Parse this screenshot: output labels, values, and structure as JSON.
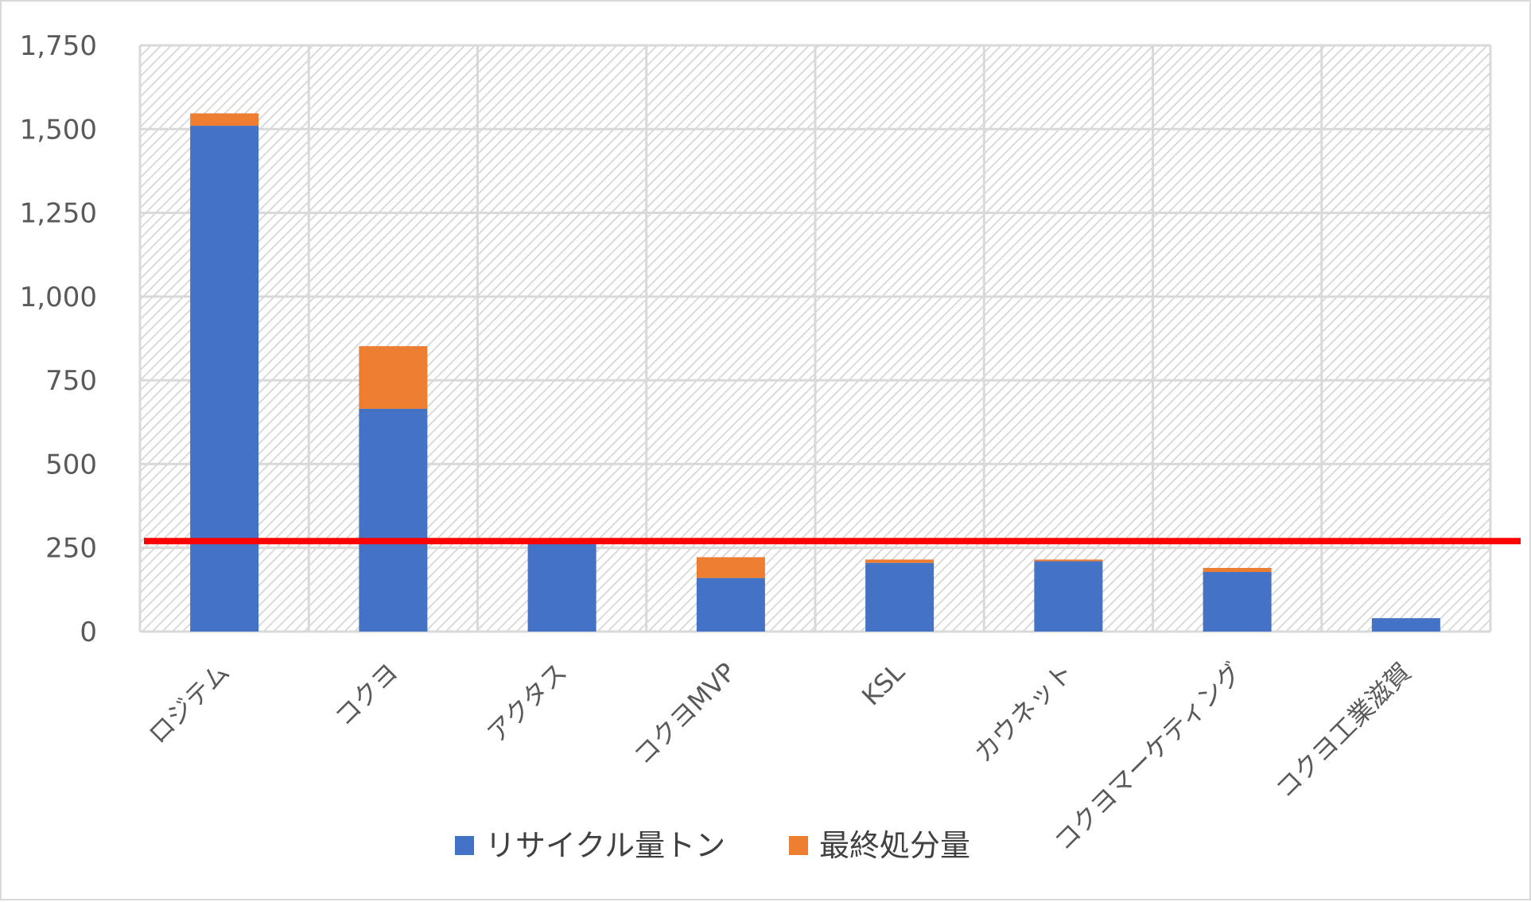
{
  "chart_data": {
    "type": "bar",
    "stacked": true,
    "categories": [
      "ロジテム",
      "コクヨ",
      "アクタス",
      "コクヨMVP",
      "KSL",
      "カウネット",
      "コクヨマーケティング",
      "コクヨ工業滋賀"
    ],
    "series": [
      {
        "name": "リサイクル量トン",
        "color": "#4472C4",
        "values": [
          1510,
          665,
          270,
          160,
          205,
          210,
          178,
          40
        ]
      },
      {
        "name": "最終処分量",
        "color": "#ED7D31",
        "values": [
          37,
          187,
          0,
          62,
          10,
          5,
          12,
          0
        ]
      }
    ],
    "ylim": [
      0,
      1750
    ],
    "yticks": [
      0,
      250,
      500,
      750,
      1000,
      1250,
      1500,
      1750
    ],
    "ytick_labels": [
      "0",
      "250",
      "500",
      "750",
      "1,000",
      "1,250",
      "1,500",
      "1,750"
    ],
    "reference_line": {
      "value": 270,
      "color": "#FF0000"
    },
    "grid": true,
    "plot_background": "hatched",
    "legend_position": "bottom",
    "xlabel": "",
    "ylabel": "",
    "title": ""
  }
}
